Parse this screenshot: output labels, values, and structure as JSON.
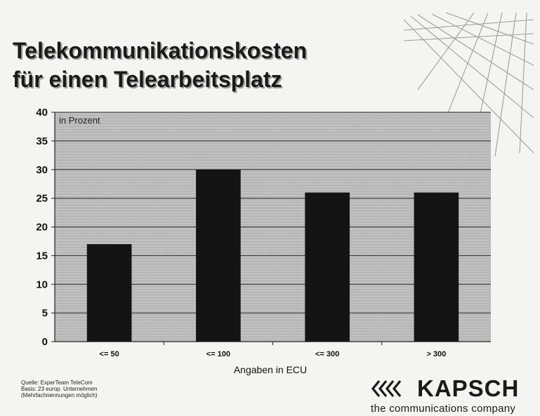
{
  "header": {
    "title_line1": "Telekommunikationskosten",
    "title_line2": "für einen Telearbeitsplatz"
  },
  "chart_data": {
    "type": "bar",
    "categories": [
      "<= 50",
      "<= 100",
      "<= 300",
      "> 300"
    ],
    "values": [
      17,
      30,
      26,
      26
    ],
    "xlabel": "Angaben in ECU",
    "ylabel": "",
    "unit_label": "in Prozent",
    "ylim": [
      0,
      40
    ],
    "yticks": [
      0,
      5,
      10,
      15,
      20,
      25,
      30,
      35,
      40
    ],
    "grid": true,
    "bar_color": "#141414",
    "plot_background": "#bdbdbd"
  },
  "footer": {
    "source_lines": [
      "Quelle: ExperTeam TeleCom",
      "Basis: 23 europ. Unternehmen",
      "(Mehrfachnennungen möglich)"
    ],
    "logo_name": "KAPSCH",
    "logo_tagline": "the communications company"
  }
}
